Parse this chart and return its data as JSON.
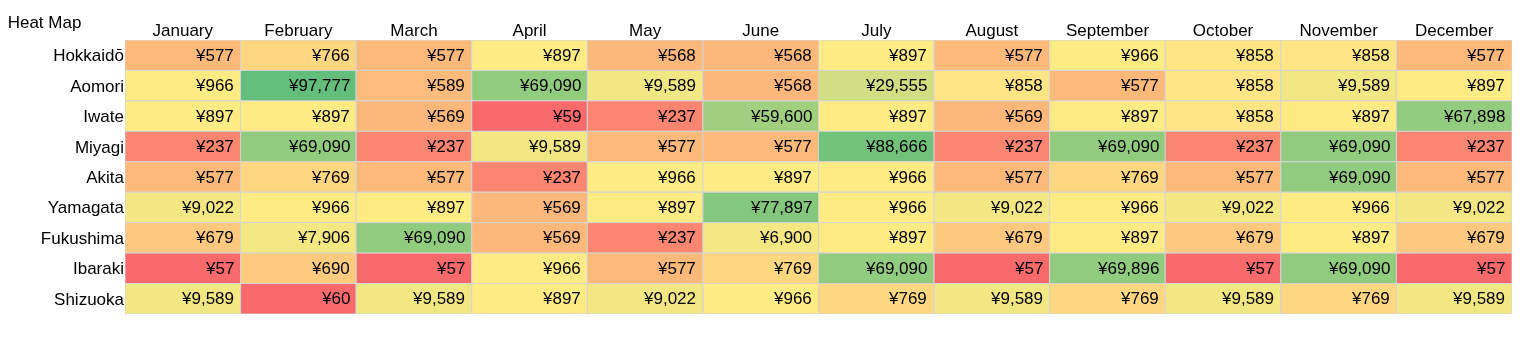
{
  "chart_data": {
    "type": "heatmap",
    "title": "Heat Map",
    "categories": [
      "January",
      "February",
      "March",
      "April",
      "May",
      "June",
      "July",
      "August",
      "September",
      "October",
      "November",
      "December"
    ],
    "y_categories": [
      "Hokkaidō",
      "Aomori",
      "Iwate",
      "Miyagi",
      "Akita",
      "Yamagata",
      "Fukushima",
      "Ibaraki",
      "Shizuoka"
    ],
    "cells": [
      [
        577,
        766,
        577,
        897,
        568,
        568,
        897,
        577,
        966,
        858,
        858,
        577
      ],
      [
        966,
        97777,
        589,
        69090,
        9589,
        568,
        29555,
        858,
        577,
        858,
        9589,
        897
      ],
      [
        897,
        897,
        569,
        59,
        237,
        59600,
        897,
        569,
        897,
        858,
        897,
        67898
      ],
      [
        237,
        69090,
        237,
        9589,
        577,
        577,
        88666,
        237,
        69090,
        237,
        69090,
        237
      ],
      [
        577,
        769,
        577,
        237,
        966,
        897,
        966,
        577,
        769,
        577,
        69090,
        577
      ],
      [
        9022,
        966,
        897,
        569,
        897,
        77897,
        966,
        9022,
        966,
        9022,
        966,
        9022
      ],
      [
        679,
        7906,
        69090,
        569,
        237,
        6900,
        897,
        679,
        897,
        679,
        897,
        679
      ],
      [
        57,
        690,
        57,
        966,
        577,
        769,
        69090,
        57,
        69896,
        57,
        69090,
        57
      ],
      [
        9589,
        60,
        9589,
        897,
        9022,
        966,
        769,
        9589,
        769,
        9589,
        769,
        9589
      ]
    ],
    "cell_labels": [
      [
        "¥577",
        "¥766",
        "¥577",
        "¥897",
        "¥568",
        "¥568",
        "¥897",
        "¥577",
        "¥966",
        "¥858",
        "¥858",
        "¥577"
      ],
      [
        "¥966",
        "¥97,777",
        "¥589",
        "¥69,090",
        "¥9,589",
        "¥568",
        "¥29,555",
        "¥858",
        "¥577",
        "¥858",
        "¥9,589",
        "¥897"
      ],
      [
        "¥897",
        "¥897",
        "¥569",
        "¥59",
        "¥237",
        "¥59,600",
        "¥897",
        "¥569",
        "¥897",
        "¥858",
        "¥897",
        "¥67,898"
      ],
      [
        "¥237",
        "¥69,090",
        "¥237",
        "¥9,589",
        "¥577",
        "¥577",
        "¥88,666",
        "¥237",
        "¥69,090",
        "¥237",
        "¥69,090",
        "¥237"
      ],
      [
        "¥577",
        "¥769",
        "¥577",
        "¥237",
        "¥966",
        "¥897",
        "¥966",
        "¥577",
        "¥769",
        "¥577",
        "¥69,090",
        "¥577"
      ],
      [
        "¥9,022",
        "¥966",
        "¥897",
        "¥569",
        "¥897",
        "¥77,897",
        "¥966",
        "¥9,022",
        "¥966",
        "¥9,022",
        "¥966",
        "¥9,022"
      ],
      [
        "¥679",
        "¥7,906",
        "¥69,090",
        "¥569",
        "¥237",
        "¥6,900",
        "¥897",
        "¥679",
        "¥897",
        "¥679",
        "¥897",
        "¥679"
      ],
      [
        "¥57",
        "¥690",
        "¥57",
        "¥966",
        "¥577",
        "¥769",
        "¥69,090",
        "¥57",
        "¥69,896",
        "¥57",
        "¥69,090",
        "¥57"
      ],
      [
        "¥9,589",
        "¥60",
        "¥9,589",
        "¥897",
        "¥9,022",
        "¥966",
        "¥769",
        "¥9,589",
        "¥769",
        "¥9,589",
        "¥769",
        "¥9,589"
      ]
    ],
    "colors": [
      "#f8696b",
      "#ffeb84",
      "#63be7b"
    ]
  }
}
